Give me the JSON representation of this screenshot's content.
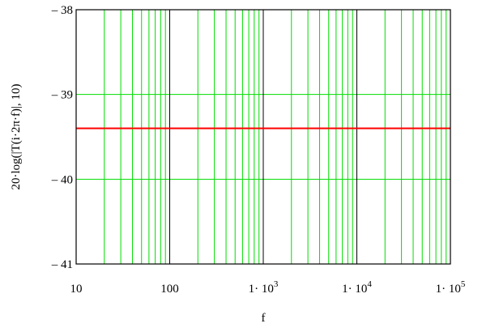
{
  "chart_data": {
    "type": "line",
    "xlabel": "f",
    "ylabel": "20·log(|T(i·2π·f)|, 10)",
    "xscale": "log",
    "xlim": [
      10,
      100000
    ],
    "ylim": [
      -41,
      -38
    ],
    "x_ticks": [
      {
        "value": 10,
        "label": "10"
      },
      {
        "value": 100,
        "label": "100"
      },
      {
        "value": 1000,
        "label": "1· 10",
        "exp": "3"
      },
      {
        "value": 10000,
        "label": "1· 10",
        "exp": "4"
      },
      {
        "value": 100000,
        "label": "1· 10",
        "exp": "5"
      }
    ],
    "y_ticks": [
      {
        "value": -38,
        "label": "– 38"
      },
      {
        "value": -39,
        "label": "– 39"
      },
      {
        "value": -40,
        "label": "– 40"
      },
      {
        "value": -41,
        "label": "– 41"
      }
    ],
    "grid": true,
    "series": [
      {
        "x": [
          10,
          100000
        ],
        "y": [
          -39.4,
          -39.4
        ],
        "color": "#ff0000"
      }
    ],
    "colors": {
      "minor_grid": "#00dd00",
      "major_grid": "#000000",
      "frame": "#000000"
    }
  }
}
